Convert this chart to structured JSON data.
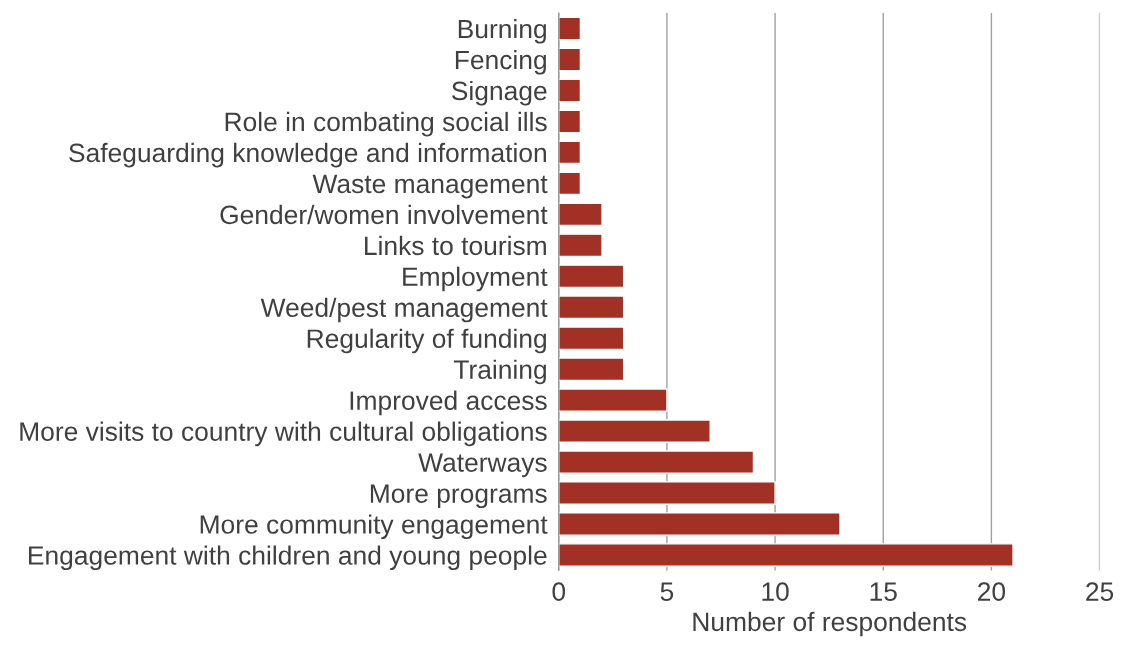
{
  "chart_data": {
    "type": "bar",
    "orientation": "horizontal",
    "categories": [
      "Burning",
      "Fencing",
      "Signage",
      "Role in combating social ills",
      "Safeguarding knowledge and information",
      "Waste management",
      "Gender/women involvement",
      "Links to tourism",
      "Employment",
      "Weed/pest management",
      "Regularity of funding",
      "Training",
      "Improved access",
      "More visits to country with cultural obligations",
      "Waterways",
      "More programs",
      "More community engagement",
      "Engagement with children and young people"
    ],
    "values": [
      1,
      1,
      1,
      1,
      1,
      1,
      2,
      2,
      3,
      3,
      3,
      3,
      5,
      7,
      9,
      10,
      13,
      21
    ],
    "color": "#a33025",
    "xlabel": "Number of respondents",
    "xlim": [
      0,
      25
    ],
    "xticks": [
      0,
      5,
      10,
      15,
      20,
      25
    ],
    "grid": "x"
  }
}
